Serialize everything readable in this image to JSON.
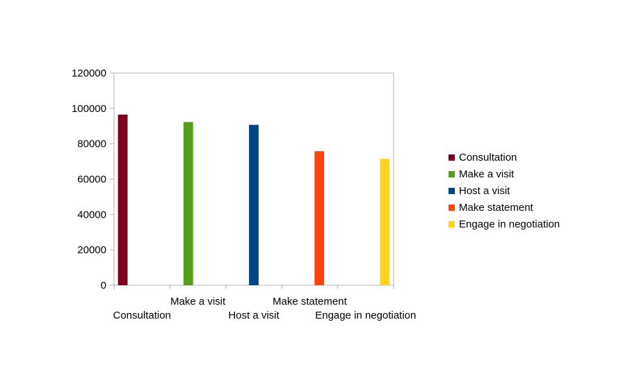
{
  "chart_data": {
    "type": "bar",
    "categories": [
      "Consultation",
      "Make a visit",
      "Host a visit",
      "Make statement",
      "Engage in negotiation"
    ],
    "series": [
      {
        "name": "Consultation",
        "color": "#7E0021",
        "values": [
          96500,
          null,
          null,
          null,
          null
        ]
      },
      {
        "name": "Make a visit",
        "color": "#579D1C",
        "values": [
          null,
          92300,
          null,
          null,
          null
        ]
      },
      {
        "name": "Host a visit",
        "color": "#004586",
        "values": [
          null,
          null,
          90700,
          null,
          null
        ]
      },
      {
        "name": "Make statement",
        "color": "#FF420E",
        "values": [
          null,
          null,
          null,
          75800,
          null
        ]
      },
      {
        "name": "Engage in negotiation",
        "color": "#FFD320",
        "values": [
          null,
          null,
          null,
          null,
          71500
        ]
      }
    ],
    "yticks": [
      "0",
      "20000",
      "40000",
      "60000",
      "80000",
      "100000",
      "120000"
    ],
    "ylim": [
      0,
      120000
    ],
    "title": "",
    "xlabel": "",
    "ylabel": "",
    "legend_position": "right",
    "grid": false
  }
}
